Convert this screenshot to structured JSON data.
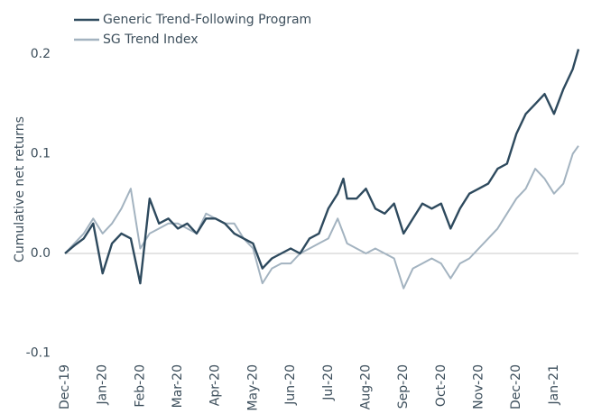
{
  "chart_data": {
    "type": "line",
    "ylabel": "Cumulative net returns",
    "x": [
      0,
      0.25,
      0.5,
      0.75,
      1,
      1.25,
      1.5,
      1.75,
      2,
      2.25,
      2.5,
      2.75,
      3,
      3.25,
      3.5,
      3.75,
      4,
      4.25,
      4.5,
      4.75,
      5,
      5.25,
      5.5,
      5.75,
      6,
      6.25,
      6.5,
      6.75,
      7,
      7.25,
      7.4,
      7.5,
      7.75,
      8,
      8.25,
      8.5,
      8.75,
      9,
      9.25,
      9.5,
      9.75,
      10,
      10.25,
      10.5,
      10.75,
      11,
      11.25,
      11.5,
      11.75,
      12,
      12.25,
      12.5,
      12.75,
      13,
      13.25,
      13.5,
      13.65
    ],
    "series": [
      {
        "name": "Generic Trend-Following Program",
        "color": "#2e4a5e",
        "values": [
          0,
          0.008,
          0.015,
          0.03,
          -0.02,
          0.01,
          0.02,
          0.015,
          -0.03,
          0.055,
          0.03,
          0.035,
          0.025,
          0.03,
          0.02,
          0.035,
          0.035,
          0.03,
          0.02,
          0.015,
          0.01,
          -0.015,
          -0.005,
          0,
          0.005,
          0,
          0.015,
          0.02,
          0.045,
          0.06,
          0.075,
          0.055,
          0.055,
          0.065,
          0.045,
          0.04,
          0.05,
          0.02,
          0.035,
          0.05,
          0.045,
          0.05,
          0.025,
          0.045,
          0.06,
          0.065,
          0.07,
          0.085,
          0.09,
          0.12,
          0.14,
          0.15,
          0.16,
          0.14,
          0.165,
          0.185,
          0.205
        ]
      },
      {
        "name": "SG Trend Index",
        "color": "#a3b3c0",
        "values": [
          0,
          0.01,
          0.02,
          0.035,
          0.02,
          0.03,
          0.045,
          0.065,
          0.005,
          0.02,
          0.025,
          0.03,
          0.03,
          0.025,
          0.02,
          0.04,
          0.035,
          0.03,
          0.03,
          0.015,
          0.005,
          -0.03,
          -0.015,
          -0.01,
          -0.01,
          0,
          0.005,
          0.01,
          0.015,
          0.035,
          0.02,
          0.01,
          0.005,
          0,
          0.005,
          0,
          -0.005,
          -0.035,
          -0.015,
          -0.01,
          -0.005,
          -0.01,
          -0.025,
          -0.01,
          -0.005,
          0.005,
          0.015,
          0.025,
          0.04,
          0.055,
          0.065,
          0.085,
          0.075,
          0.06,
          0.07,
          0.1,
          0.108
        ]
      }
    ],
    "xlim": [
      0,
      13.65
    ],
    "xticks": [
      {
        "value": 0,
        "label": "Dec-19"
      },
      {
        "value": 1,
        "label": "Jan-20"
      },
      {
        "value": 2,
        "label": "Feb-20"
      },
      {
        "value": 3,
        "label": "Mar-20"
      },
      {
        "value": 4,
        "label": "Apr-20"
      },
      {
        "value": 5,
        "label": "May-20"
      },
      {
        "value": 6,
        "label": "Jun-20"
      },
      {
        "value": 7,
        "label": "Jul-20"
      },
      {
        "value": 8,
        "label": "Aug-20"
      },
      {
        "value": 9,
        "label": "Sep-20"
      },
      {
        "value": 10,
        "label": "Oct-20"
      },
      {
        "value": 11,
        "label": "Nov-20"
      },
      {
        "value": 12,
        "label": "Dec-20"
      },
      {
        "value": 13,
        "label": "Jan-21"
      }
    ],
    "ylim": [
      -0.1,
      0.22
    ],
    "yticks": [
      -0.1,
      {
        "value": 0,
        "label": "0.0"
      },
      0.1,
      0.2
    ],
    "zero_line": true,
    "legend": "top-left"
  }
}
